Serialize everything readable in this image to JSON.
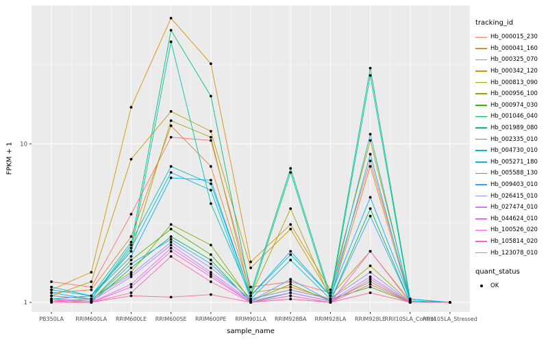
{
  "chart_data": {
    "type": "line",
    "title": "",
    "xlabel": "sample_name",
    "ylabel": "FPKM + 1",
    "y_scale": "log10",
    "y_ticks": [
      1,
      10
    ],
    "ylim": [
      0.87,
      75
    ],
    "grid": true,
    "panel_bg": "#EBEBEB",
    "grid_color": "#FFFFFF",
    "point_color": "#000000",
    "legend_position": "right",
    "categories": [
      "PB350LA",
      "RRIM600LA",
      "RRIM600LE",
      "RRIM600SE",
      "RRIM600PE",
      "RRIM901LA",
      "RRIM928BA",
      "RRIM928LA",
      "RRIM928LE",
      "RRII105LA_Control",
      "RRII105LA_Stressed"
    ],
    "series": [
      {
        "name": "Hb_000015_230",
        "color": "#F8766D",
        "values": [
          1.35,
          1.25,
          3.6,
          11,
          10.5,
          1.25,
          1.35,
          1.15,
          7.8,
          1.05,
          1
        ]
      },
      {
        "name": "Hb_000041_160",
        "color": "#EA8331",
        "values": [
          1.15,
          1.2,
          2.6,
          13,
          7.2,
          1.15,
          1.25,
          1.05,
          7.2,
          1.02,
          1
        ]
      },
      {
        "name": "Hb_000325_070",
        "color": "#D89000",
        "values": [
          1.2,
          1.55,
          17,
          62,
          32,
          1.8,
          3.1,
          1.2,
          10.5,
          1.05,
          1
        ]
      },
      {
        "name": "Hb_000342_120",
        "color": "#C09B00",
        "values": [
          1.1,
          1.35,
          8,
          16,
          12,
          1.65,
          2.9,
          1.1,
          2.1,
          1.02,
          1
        ]
      },
      {
        "name": "Hb_000813_090",
        "color": "#A3A500",
        "values": [
          1.05,
          1.1,
          2.1,
          14,
          11,
          1.1,
          3.9,
          1.05,
          1.7,
          1,
          1
        ]
      },
      {
        "name": "Hb_000956_100",
        "color": "#7CAE00",
        "values": [
          1.02,
          1.05,
          1.55,
          3.1,
          2.3,
          1.02,
          1.3,
          1.02,
          1.35,
          1,
          1
        ]
      },
      {
        "name": "Hb_000974_030",
        "color": "#39B600",
        "values": [
          1.05,
          1.02,
          1.85,
          2.9,
          2,
          1.05,
          1.2,
          1.05,
          1.25,
          1,
          1
        ]
      },
      {
        "name": "Hb_001046_040",
        "color": "#00BB4E",
        "values": [
          1.02,
          1,
          1.65,
          2.6,
          1.85,
          1,
          1.15,
          1.02,
          3.9,
          1,
          1
        ]
      },
      {
        "name": "Hb_001989_080",
        "color": "#00BF7D",
        "values": [
          1.1,
          1.05,
          2.3,
          52,
          20,
          1.15,
          7,
          1.1,
          30,
          1.05,
          1
        ]
      },
      {
        "name": "Hb_002335_010",
        "color": "#00C1A3",
        "values": [
          1.05,
          1.1,
          2.1,
          44,
          4.2,
          1.1,
          6.6,
          1.05,
          27,
          1.02,
          1
        ]
      },
      {
        "name": "Hb_004730_010",
        "color": "#00BFC4",
        "values": [
          1.25,
          1.1,
          2.4,
          7.2,
          5.6,
          1.1,
          2,
          1.1,
          11.5,
          1.02,
          1
        ]
      },
      {
        "name": "Hb_005271_180",
        "color": "#00BAE0",
        "values": [
          1.15,
          1.05,
          2.2,
          6.6,
          5.1,
          1.05,
          1.85,
          1.05,
          8.6,
          1,
          1
        ]
      },
      {
        "name": "Hb_005588_130",
        "color": "#00B0F6",
        "values": [
          1.2,
          1.1,
          1.95,
          6.1,
          5.9,
          1.1,
          2.1,
          1.1,
          4.6,
          1.05,
          1
        ]
      },
      {
        "name": "Hb_009403_010",
        "color": "#35A2FF",
        "values": [
          1.05,
          1.02,
          1.75,
          2.5,
          1.75,
          1.02,
          1.4,
          1.02,
          3.5,
          1,
          1
        ]
      },
      {
        "name": "Hb_026415_010",
        "color": "#9590FF",
        "values": [
          1.1,
          1.05,
          1.5,
          2.4,
          1.65,
          1.05,
          1.2,
          1.05,
          1.55,
          1,
          1
        ]
      },
      {
        "name": "Hb_027474_010",
        "color": "#C77CFF",
        "values": [
          1.05,
          1.02,
          1.45,
          2.3,
          1.55,
          1.02,
          1.15,
          1.02,
          1.45,
          1,
          1
        ]
      },
      {
        "name": "Hb_044624_010",
        "color": "#E76BF3",
        "values": [
          1.02,
          1,
          1.3,
          2.2,
          1.5,
          1,
          1.1,
          1,
          1.4,
          1,
          1
        ]
      },
      {
        "name": "Hb_100526_020",
        "color": "#FA62DB",
        "values": [
          1.05,
          1,
          1.25,
          2.1,
          1.45,
          1,
          1.1,
          1,
          2.1,
          1,
          1
        ]
      },
      {
        "name": "Hb_105814_020",
        "color": "#FF62BC",
        "values": [
          1.02,
          1,
          1.15,
          1.95,
          1.35,
          1,
          1.05,
          1,
          1.3,
          1,
          1
        ]
      },
      {
        "name": "Hb_123078_010",
        "color": "#FF6A98",
        "values": [
          1,
          1,
          1.1,
          1.08,
          1.12,
          1,
          1.05,
          1,
          1.15,
          1,
          1
        ]
      }
    ],
    "legend": {
      "color_title": "tracking_id",
      "shape_title": "quant_status",
      "shape_items": [
        {
          "label": "OK",
          "shape": "point",
          "color": "#000000"
        }
      ]
    }
  }
}
